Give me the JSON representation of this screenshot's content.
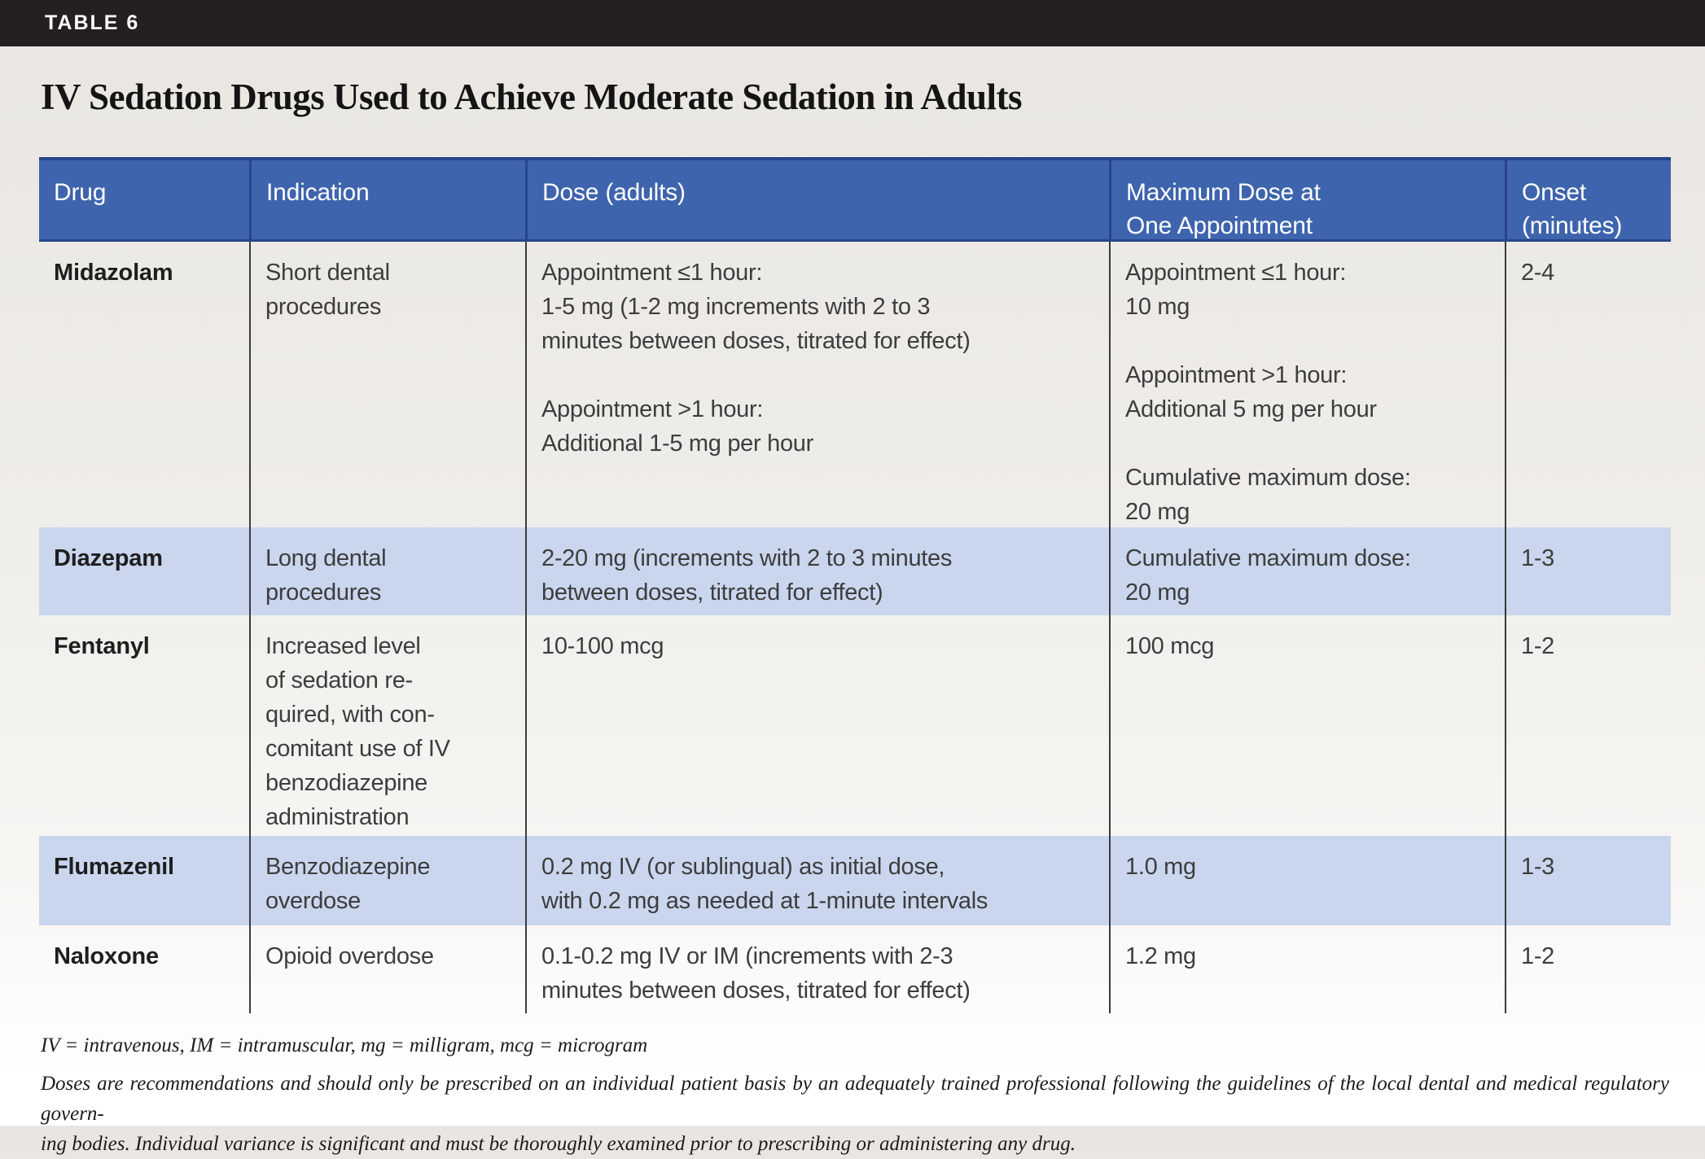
{
  "banner": {
    "label": "TABLE 6"
  },
  "title": "IV Sedation Drugs Used to Achieve Moderate Sedation in Adults",
  "table": {
    "columns": [
      "Drug",
      "Indication",
      "Dose (adults)",
      "Maximum Dose at\nOne Appointment",
      "Onset\n(minutes)"
    ],
    "rows": [
      {
        "drug": "Midazolam",
        "indication": "Short dental\nprocedures",
        "dose": "Appointment ≤1 hour:\n1-5 mg (1-2 mg increments with 2 to 3\nminutes between doses, titrated for effect)\n\nAppointment >1 hour:\nAdditional 1-5 mg per hour",
        "max_dose": "Appointment ≤1 hour:\n10 mg\n\nAppointment >1 hour:\nAdditional 5 mg per hour\n\nCumulative maximum dose:\n20 mg",
        "onset": "2-4"
      },
      {
        "drug": "Diazepam",
        "indication": "Long dental\nprocedures",
        "dose": "2-20 mg (increments with 2 to 3 minutes\nbetween doses, titrated for effect)",
        "max_dose": "Cumulative maximum dose:\n20 mg",
        "onset": "1-3"
      },
      {
        "drug": "Fentanyl",
        "indication": "Increased level\nof sedation re-\nquired, with con-\ncomitant use of IV\nbenzodiazepine\nadministration",
        "dose": "10-100 mcg",
        "max_dose": "100 mcg",
        "onset": "1-2"
      },
      {
        "drug": "Flumazenil",
        "indication": "Benzodiazepine\noverdose",
        "dose": "0.2 mg IV (or sublingual) as initial dose,\nwith 0.2 mg as needed at 1-minute intervals",
        "max_dose": "1.0 mg",
        "onset": "1-3"
      },
      {
        "drug": "Naloxone",
        "indication": "Opioid overdose",
        "dose": "0.1-0.2 mg IV or IM (increments with 2-3\nminutes between doses, titrated for effect)",
        "max_dose": "1.2 mg",
        "onset": "1-2"
      }
    ]
  },
  "footnotes": {
    "abbreviations": "IV = intravenous, IM = intramuscular, mg = milligram, mcg = microgram",
    "disclaimer_lines": [
      "Doses are recommendations and should only be prescribed on an individual patient basis by an adequately trained professional following the guidelines of the local dental and medical regulatory govern-",
      "ing bodies. Individual variance is significant and must be thoroughly examined prior to prescribing or administering any drug."
    ]
  },
  "colors": {
    "topbar_bg": "#241f20",
    "header_bg": "#3e64ad",
    "header_border": "#27458b",
    "row_shaded_bg": "#c9d6ee",
    "body_border": "#3b3b3b"
  }
}
